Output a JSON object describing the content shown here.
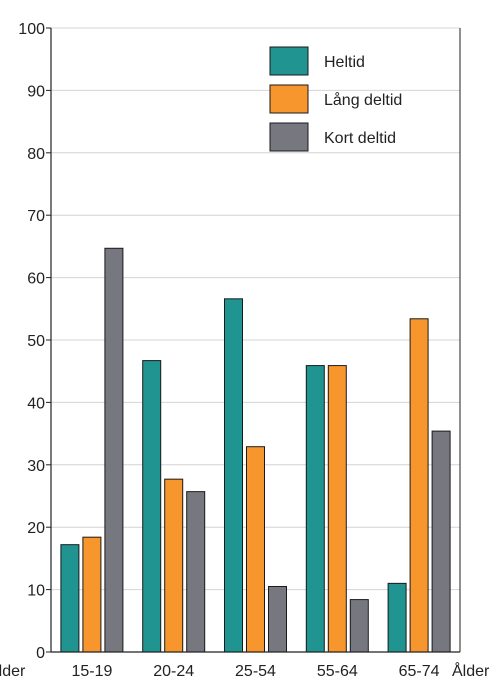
{
  "chart_data": {
    "type": "bar",
    "categories": [
      "15-19",
      "20-24",
      "25-54",
      "55-64",
      "65-74"
    ],
    "series": [
      {
        "name": "Heltid",
        "color": "#1f9490",
        "values": [
          17.2,
          46.7,
          56.6,
          45.9,
          11.0
        ]
      },
      {
        "name": "Lång deltid",
        "color": "#f7962d",
        "values": [
          18.4,
          27.7,
          32.9,
          45.9,
          53.4
        ]
      },
      {
        "name": "Kort deltid",
        "color": "#777780",
        "values": [
          64.7,
          25.7,
          10.5,
          8.4,
          35.4
        ]
      }
    ],
    "xlabel": "Ålder",
    "ylabel": "",
    "ylim": [
      0,
      100
    ],
    "yticks": [
      0,
      10,
      20,
      30,
      40,
      50,
      60,
      70,
      80,
      90,
      100
    ],
    "grid": "horizontal",
    "legend_position": "top-right"
  }
}
